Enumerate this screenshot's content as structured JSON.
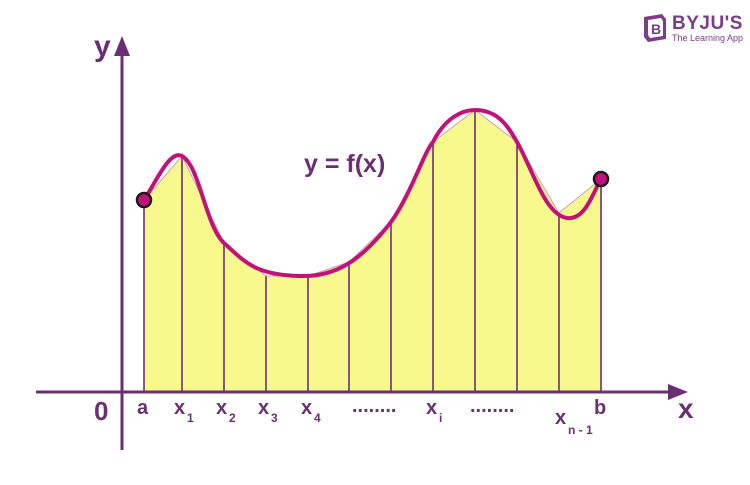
{
  "labels": {
    "y_axis": "y",
    "x_axis": "x",
    "origin": "0",
    "curve": "y = f(x)",
    "a": "a",
    "b": "b",
    "x1": {
      "base": "x",
      "sub": "1"
    },
    "x2": {
      "base": "x",
      "sub": "2"
    },
    "x3": {
      "base": "x",
      "sub": "3"
    },
    "x4": {
      "base": "x",
      "sub": "4"
    },
    "xi": {
      "base": "x",
      "sub": "i"
    },
    "xn1": {
      "base": "x",
      "sub": "n - 1"
    },
    "dots1": "........",
    "dots2": "........"
  },
  "brand": {
    "name": "BYJU'S",
    "tagline": "The Learning App"
  },
  "colors": {
    "axis": "#6b2f74",
    "curve": "#c2127a",
    "fill": "#f7f98c",
    "strip_line": "#6b2f74",
    "endpoint_fill": "#c2127a",
    "endpoint_stroke": "#1a1a1a"
  }
}
